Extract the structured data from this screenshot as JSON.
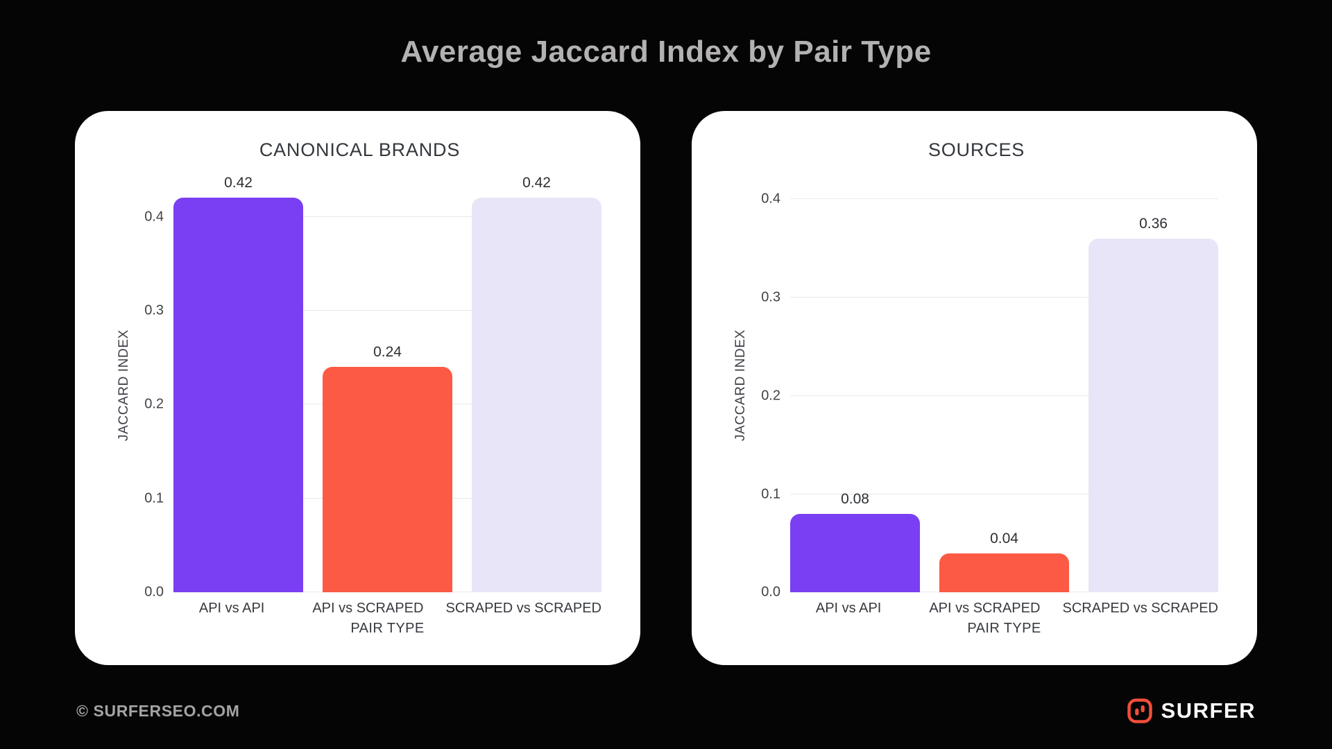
{
  "page": {
    "title": "Average Jaccard Index by Pair Type"
  },
  "footer": {
    "copyright": "© SURFERSEO.COM",
    "brand": "SURFER"
  },
  "colors": {
    "background": "#050505",
    "card": "#ffffff",
    "purple_bar": "#7a3ff2",
    "orange_bar": "#fc5a45",
    "lavender_bar": "#e9e5f8",
    "gridline": "#e9e9e9",
    "logo_red": "#f04f3a"
  },
  "chart_data": [
    {
      "type": "bar",
      "title": "CANONICAL BRANDS",
      "categories": [
        "API vs API",
        "API vs SCRAPED",
        "SCRAPED vs SCRAPED"
      ],
      "values": [
        0.42,
        0.24,
        0.42
      ],
      "value_labels": [
        "0.42",
        "0.24",
        "0.42"
      ],
      "bar_colors": [
        "#7a3ff2",
        "#fc5a45",
        "#e9e5f8"
      ],
      "xlabel": "PAIR TYPE",
      "ylabel": "JACCARD INDEX",
      "yticks": [
        0,
        0.1,
        0.2,
        0.3,
        0.4
      ],
      "ytick_labels": [
        "0.0",
        "0.1",
        "0.2",
        "0.3",
        "0.4"
      ],
      "ylim": [
        0,
        0.44
      ],
      "grid": true,
      "legend": false
    },
    {
      "type": "bar",
      "title": "SOURCES",
      "categories": [
        "API vs API",
        "API vs SCRAPED",
        "SCRAPED vs SCRAPED"
      ],
      "values": [
        0.08,
        0.04,
        0.36
      ],
      "value_labels": [
        "0.08",
        "0.04",
        "0.36"
      ],
      "bar_colors": [
        "#7a3ff2",
        "#fc5a45",
        "#e9e5f8"
      ],
      "xlabel": "PAIR TYPE",
      "ylabel": "JACCARD INDEX",
      "yticks": [
        0,
        0.1,
        0.2,
        0.3,
        0.4
      ],
      "ytick_labels": [
        "0.0",
        "0.1",
        "0.2",
        "0.3",
        "0.4"
      ],
      "ylim": [
        0,
        0.42
      ],
      "grid": true,
      "legend": false
    }
  ]
}
